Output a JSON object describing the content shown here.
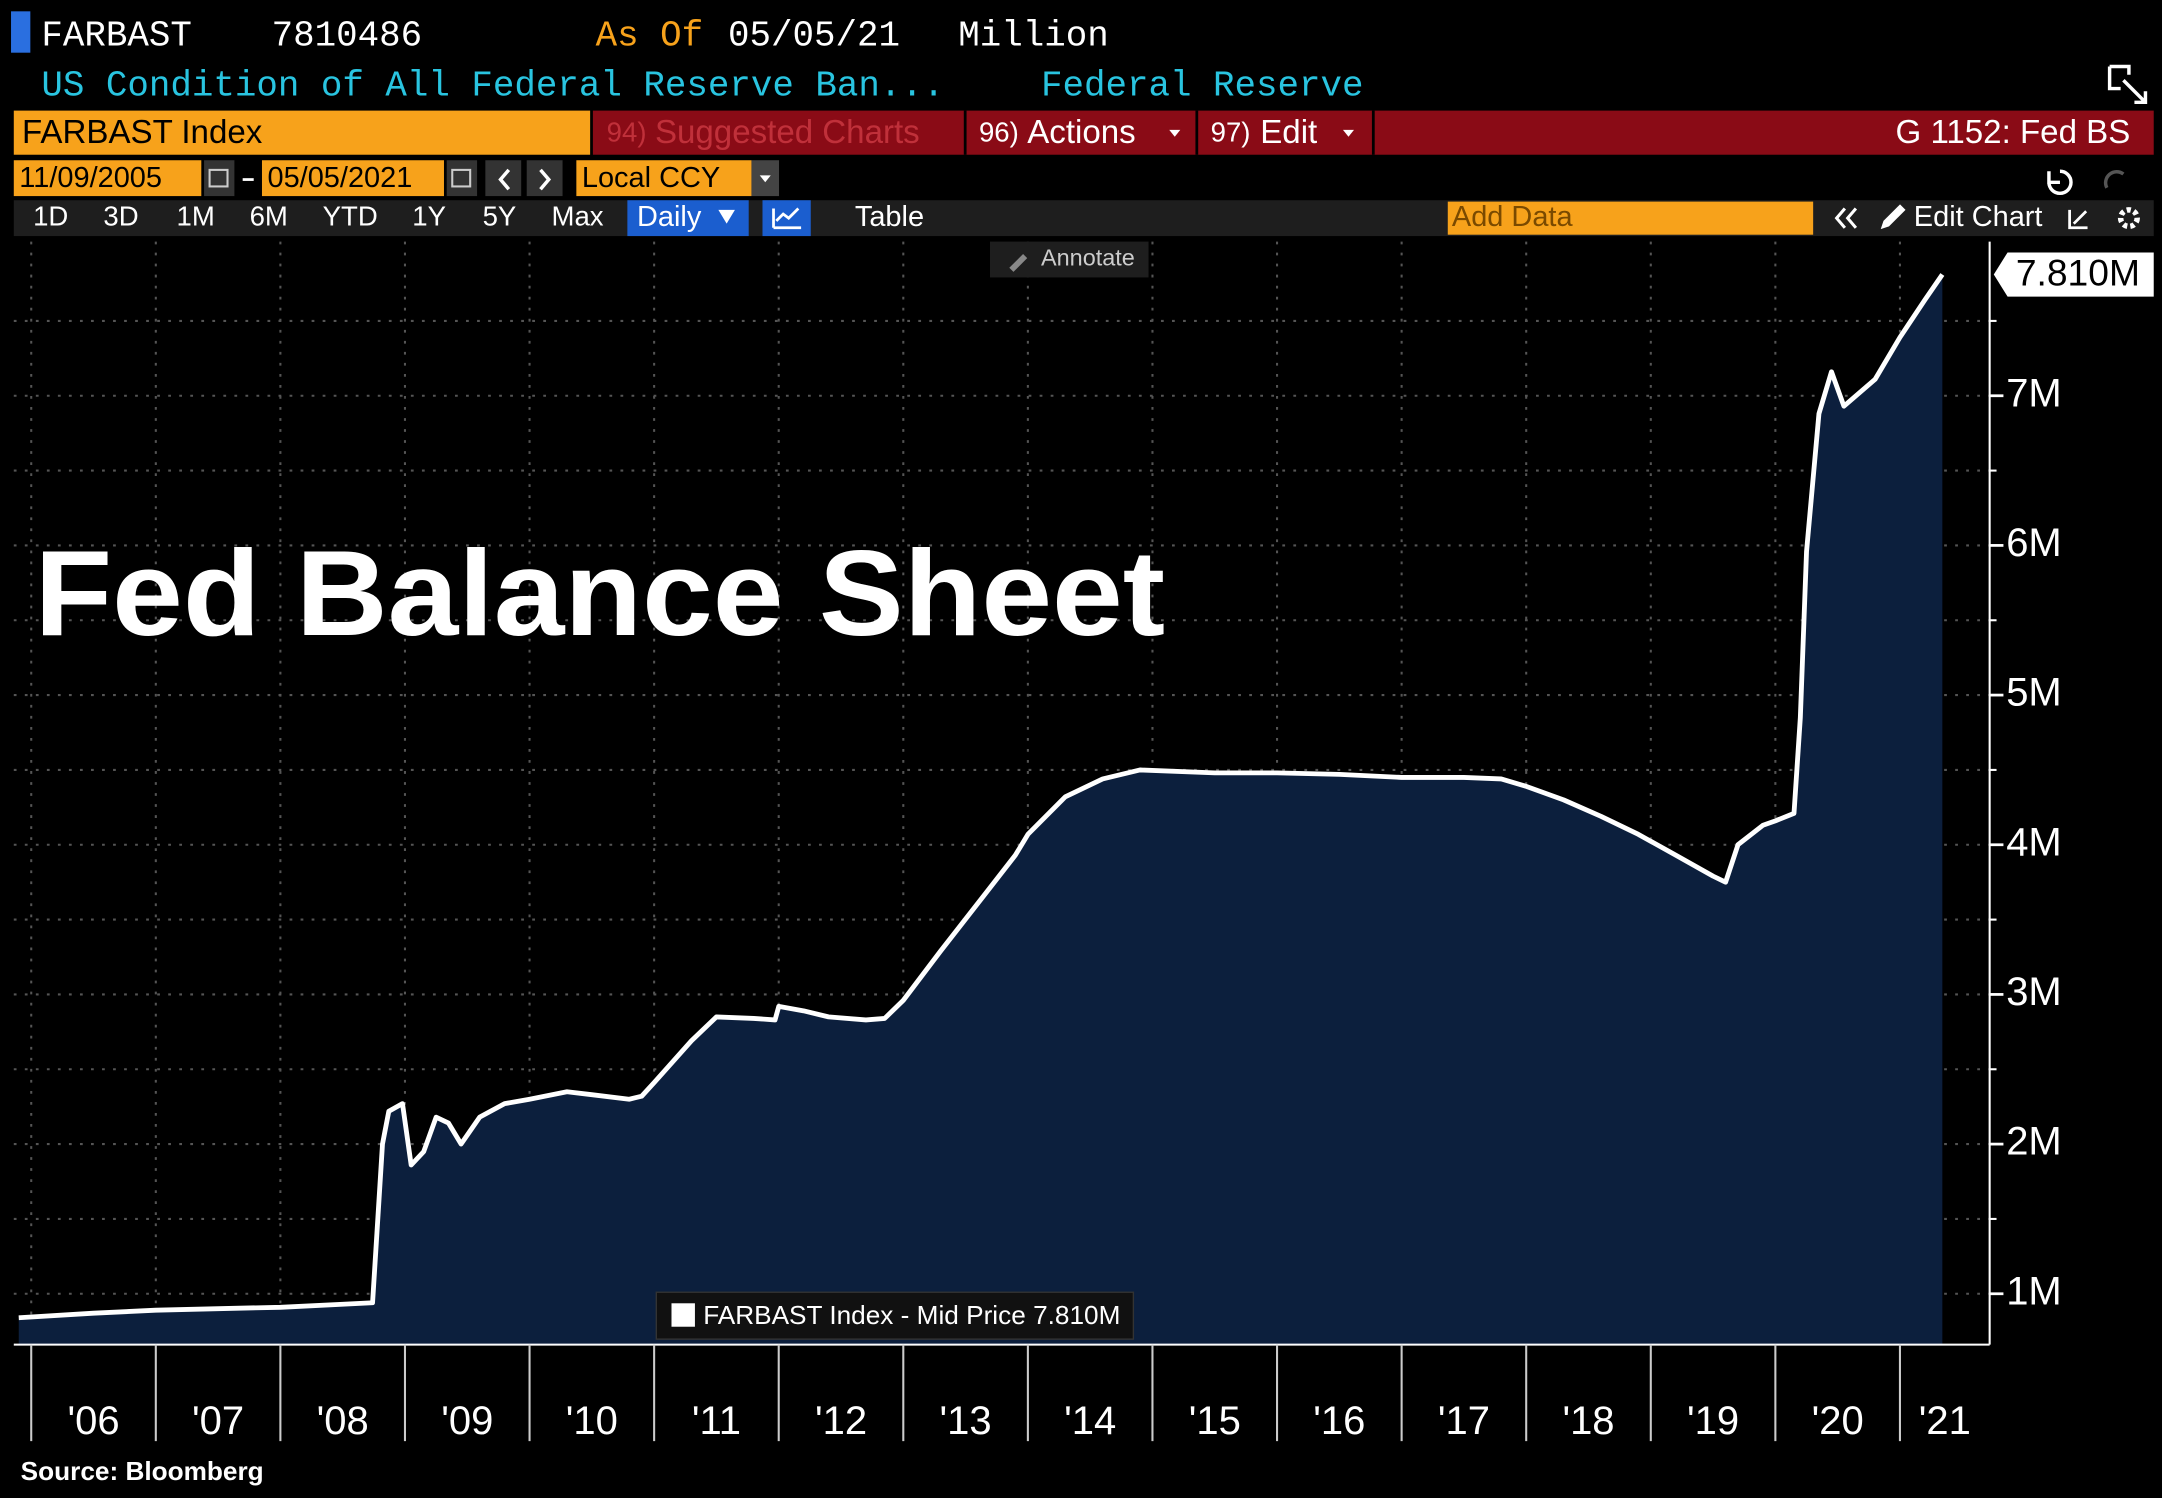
{
  "header": {
    "ticker": "FARBAST",
    "last": "7810486",
    "as_of_label": "As Of",
    "as_of_date": "05/05/21",
    "unit": "Million",
    "description": "US Condition of All Federal Reserve Ban...",
    "source": "Federal Reserve"
  },
  "toolbar": {
    "security": "FARBAST Index",
    "menus": [
      {
        "num": "94)",
        "label": "Suggested Charts"
      },
      {
        "num": "96)",
        "label": "Actions"
      },
      {
        "num": "97)",
        "label": "Edit"
      }
    ],
    "page": "G 1152: Fed BS",
    "start_date": "11/09/2005",
    "end_date": "05/05/2021",
    "currency": "Local CCY",
    "periods": [
      "1D",
      "3D",
      "1M",
      "6M",
      "YTD",
      "1Y",
      "5Y",
      "Max"
    ],
    "frequency": "Daily",
    "table": "Table",
    "add_data": "Add Data",
    "edit_chart": "Edit Chart",
    "annotate": "Annotate"
  },
  "chart_data": {
    "type": "area",
    "title": "Fed Balance Sheet",
    "x": [
      2005.9,
      2006.5,
      2007.0,
      2007.5,
      2008.0,
      2008.5,
      2008.74,
      2008.82,
      2008.87,
      2008.98,
      2009.05,
      2009.15,
      2009.25,
      2009.35,
      2009.45,
      2009.6,
      2009.8,
      2010.0,
      2010.3,
      2010.5,
      2010.8,
      2010.9,
      2011.0,
      2011.3,
      2011.5,
      2011.8,
      2011.97,
      2012.0,
      2012.2,
      2012.4,
      2012.7,
      2012.85,
      2013.0,
      2013.3,
      2013.6,
      2013.9,
      2014.0,
      2014.3,
      2014.6,
      2014.9,
      2015.5,
      2016.0,
      2016.5,
      2017.0,
      2017.5,
      2017.8,
      2018.0,
      2018.3,
      2018.6,
      2018.9,
      2019.2,
      2019.5,
      2019.6,
      2019.7,
      2019.9,
      2020.0,
      2020.15,
      2020.2,
      2020.25,
      2020.35,
      2020.45,
      2020.55,
      2020.8,
      2021.0,
      2021.2,
      2021.34
    ],
    "series": [
      {
        "name": "FARBAST Index - Mid Price 7.810M",
        "color": "#ffffff",
        "fill": "#0c1f3d",
        "values": [
          0.84,
          0.87,
          0.89,
          0.9,
          0.91,
          0.93,
          0.94,
          2.0,
          2.22,
          2.27,
          1.86,
          1.95,
          2.18,
          2.14,
          2.0,
          2.18,
          2.27,
          2.3,
          2.35,
          2.33,
          2.3,
          2.32,
          2.41,
          2.69,
          2.85,
          2.84,
          2.83,
          2.92,
          2.89,
          2.85,
          2.83,
          2.84,
          2.96,
          3.29,
          3.61,
          3.93,
          4.07,
          4.32,
          4.44,
          4.5,
          4.48,
          4.48,
          4.47,
          4.45,
          4.45,
          4.44,
          4.39,
          4.3,
          4.19,
          4.07,
          3.93,
          3.79,
          3.75,
          4.0,
          4.13,
          4.16,
          4.21,
          4.85,
          5.96,
          6.88,
          7.16,
          6.93,
          7.11,
          7.39,
          7.64,
          7.81
        ]
      }
    ],
    "xlim": [
      2005.86,
      2021.72
    ],
    "xticks": [
      {
        "value": 2006,
        "label": "'06"
      },
      {
        "value": 2007,
        "label": "'07"
      },
      {
        "value": 2008,
        "label": "'08"
      },
      {
        "value": 2009,
        "label": "'09"
      },
      {
        "value": 2010,
        "label": "'10"
      },
      {
        "value": 2011,
        "label": "'11"
      },
      {
        "value": 2012,
        "label": "'12"
      },
      {
        "value": 2013,
        "label": "'13"
      },
      {
        "value": 2014,
        "label": "'14"
      },
      {
        "value": 2015,
        "label": "'15"
      },
      {
        "value": 2016,
        "label": "'16"
      },
      {
        "value": 2017,
        "label": "'17"
      },
      {
        "value": 2018,
        "label": "'18"
      },
      {
        "value": 2019,
        "label": "'19"
      },
      {
        "value": 2020,
        "label": "'20"
      },
      {
        "value": 2021,
        "label": "'21"
      }
    ],
    "ylim": [
      0.66,
      8.03
    ],
    "yticks": [
      {
        "value": 1,
        "label": "1M"
      },
      {
        "value": 2,
        "label": "2M"
      },
      {
        "value": 3,
        "label": "3M"
      },
      {
        "value": 4,
        "label": "4M"
      },
      {
        "value": 5,
        "label": "5M"
      },
      {
        "value": 6,
        "label": "6M"
      },
      {
        "value": 7,
        "label": "7M"
      }
    ],
    "minor_yticks": [
      1.5,
      2.5,
      3.5,
      4.5,
      5.5,
      6.5,
      7.5
    ],
    "grid": true,
    "price_tag": {
      "value": 7.81,
      "label": "7.810M"
    }
  },
  "footer": {
    "source": "Source: Bloomberg"
  }
}
